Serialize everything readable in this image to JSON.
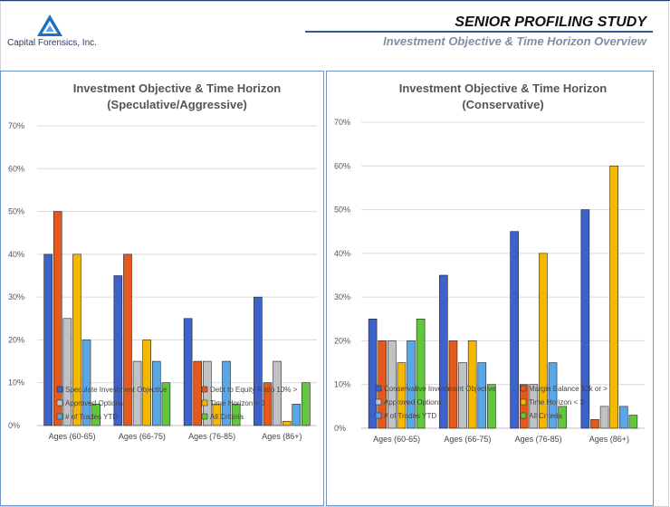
{
  "header": {
    "company": "Capital Forensics, Inc.",
    "title": "SENIOR PROFILING STUDY",
    "subtitle": "Investment Objective & Time Horizon Overview"
  },
  "colors": {
    "blue": "#3d62c9",
    "orange": "#e55a1c",
    "gray": "#bfc3c6",
    "gold": "#f5b800",
    "lightblue": "#5aa7e6",
    "green": "#62c73c",
    "grid": "#d9d9d9",
    "accent": "#2d5b9a"
  },
  "chart_data": [
    {
      "type": "bar",
      "title": "Investment Objective & Time Horizon",
      "subtitle": "(Speculative/Aggressive)",
      "categories": [
        "Ages (60-65)",
        "Ages (66-75)",
        "Ages (76-85)",
        "Ages (86+)"
      ],
      "ylim": [
        0,
        70
      ],
      "yticks": [
        "0%",
        "10%",
        "20%",
        "30%",
        "40%",
        "50%",
        "60%",
        "70%"
      ],
      "grid": true,
      "legend_position": "bottom",
      "series": [
        {
          "name": "Speculate Investment Objective",
          "color": "blue",
          "values": [
            40,
            35,
            25,
            30
          ]
        },
        {
          "name": "Debt to Equity Ratio 10% >",
          "color": "orange",
          "values": [
            50,
            40,
            15,
            10
          ]
        },
        {
          "name": "Approved Options",
          "color": "gray",
          "values": [
            25,
            15,
            15,
            15
          ]
        },
        {
          "name": "Time Horizon < 3",
          "color": "gold",
          "values": [
            40,
            20,
            5,
            1
          ]
        },
        {
          "name": "# of Trades YTD",
          "color": "lightblue",
          "values": [
            20,
            15,
            15,
            5
          ]
        },
        {
          "name": "All Criteria",
          "color": "green",
          "values": [
            5,
            10,
            5,
            10
          ]
        }
      ]
    },
    {
      "type": "bar",
      "title": "Investment Objective & Time Horizon",
      "subtitle": "(Conservative)",
      "categories": [
        "Ages (60-65)",
        "Ages (66-75)",
        "Ages (76-85)",
        "Ages (86+)"
      ],
      "ylim": [
        0,
        70
      ],
      "yticks": [
        "0%",
        "10%",
        "20%",
        "30%",
        "40%",
        "50%",
        "60%",
        "70%"
      ],
      "grid": true,
      "legend_position": "bottom",
      "series": [
        {
          "name": "Conservative Investment Objective",
          "color": "blue",
          "values": [
            25,
            35,
            45,
            50
          ]
        },
        {
          "name": "Margin Balance $2k or >",
          "color": "orange",
          "values": [
            20,
            20,
            10,
            2
          ]
        },
        {
          "name": "Approved Options",
          "color": "gray",
          "values": [
            20,
            15,
            10,
            5
          ]
        },
        {
          "name": "Time Horizon < 3",
          "color": "gold",
          "values": [
            15,
            20,
            40,
            60
          ]
        },
        {
          "name": "# of Trades YTD",
          "color": "lightblue",
          "values": [
            20,
            15,
            15,
            5
          ]
        },
        {
          "name": "All Criteria",
          "color": "green",
          "values": [
            25,
            10,
            5,
            3
          ]
        }
      ]
    }
  ]
}
